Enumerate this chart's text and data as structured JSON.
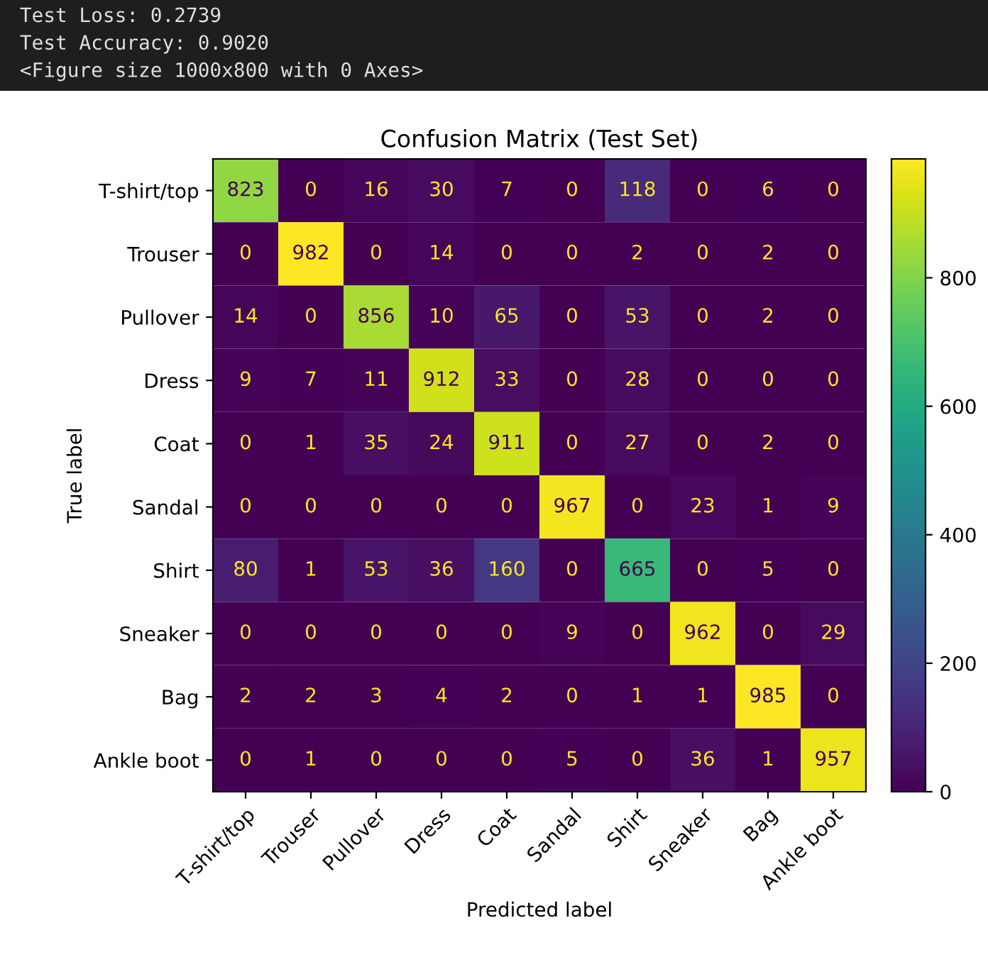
{
  "chart_data": {
    "type": "heatmap",
    "title": "Confusion Matrix (Test Set)",
    "xlabel": "Predicted label",
    "ylabel": "True label",
    "annotations": [
      "Test Loss: 0.2739",
      "Test Accuracy: 0.9020",
      "<Figure size 1000x800 with 0 Axes>"
    ],
    "categories": [
      "T-shirt/top",
      "Trouser",
      "Pullover",
      "Dress",
      "Coat",
      "Sandal",
      "Shirt",
      "Sneaker",
      "Bag",
      "Ankle boot"
    ],
    "y_categories": [
      "T-shirt/top",
      "Trouser",
      "Pullover",
      "Dress",
      "Coat",
      "Sandal",
      "Shirt",
      "Sneaker",
      "Bag",
      "Ankle boot"
    ],
    "cells": [
      [
        823,
        0,
        16,
        30,
        7,
        0,
        118,
        0,
        6,
        0
      ],
      [
        0,
        982,
        0,
        14,
        0,
        0,
        2,
        0,
        2,
        0
      ],
      [
        14,
        0,
        856,
        10,
        65,
        0,
        53,
        0,
        2,
        0
      ],
      [
        9,
        7,
        11,
        912,
        33,
        0,
        28,
        0,
        0,
        0
      ],
      [
        0,
        1,
        35,
        24,
        911,
        0,
        27,
        0,
        2,
        0
      ],
      [
        0,
        0,
        0,
        0,
        0,
        967,
        0,
        23,
        1,
        9
      ],
      [
        80,
        1,
        53,
        36,
        160,
        0,
        665,
        0,
        5,
        0
      ],
      [
        0,
        0,
        0,
        0,
        0,
        9,
        0,
        962,
        0,
        29
      ],
      [
        2,
        2,
        3,
        4,
        2,
        0,
        1,
        1,
        985,
        0
      ],
      [
        0,
        1,
        0,
        0,
        0,
        5,
        0,
        36,
        1,
        957
      ]
    ],
    "clim": [
      0,
      985
    ],
    "cticks": [
      0,
      200,
      400,
      600,
      800
    ],
    "data_labels": true
  }
}
